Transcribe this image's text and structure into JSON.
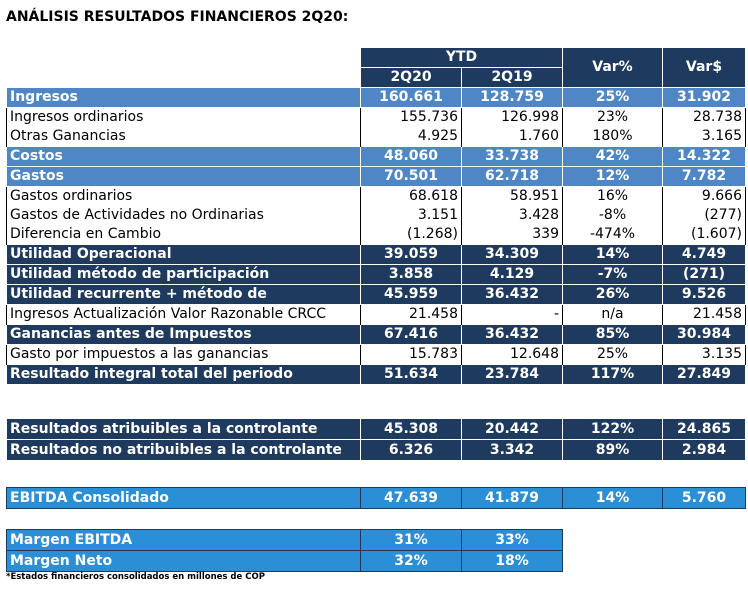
{
  "title": "ANÁLISIS RESULTADOS FINANCIEROS 2Q20:",
  "header": {
    "group": "YTD",
    "col_2q20": "2Q20",
    "col_2q19": "2Q19",
    "col_varpct": "Var%",
    "col_vardol": "Var$"
  },
  "rows": [
    {
      "label": "Ingresos",
      "a": "160.661",
      "b": "128.759",
      "c": "25%",
      "d": "31.902",
      "style": "blue"
    },
    {
      "label": "Ingresos ordinarios",
      "a": "155.736",
      "b": "126.998",
      "c": "23%",
      "d": "28.738",
      "style": "plain"
    },
    {
      "label": "Otras Ganancias",
      "a": "4.925",
      "b": "1.760",
      "c": "180%",
      "d": "3.165",
      "style": "plain"
    },
    {
      "label": "Costos",
      "a": "48.060",
      "b": "33.738",
      "c": "42%",
      "d": "14.322",
      "style": "blue"
    },
    {
      "label": "Gastos",
      "a": "70.501",
      "b": "62.718",
      "c": "12%",
      "d": "7.782",
      "style": "blue"
    },
    {
      "label": "Gastos ordinarios",
      "a": "68.618",
      "b": "58.951",
      "c": "16%",
      "d": "9.666",
      "style": "plain"
    },
    {
      "label": "Gastos de Actividades no Ordinarias",
      "a": "3.151",
      "b": "3.428",
      "c": "-8%",
      "d": "(277)",
      "style": "plain"
    },
    {
      "label": "Diferencia en Cambio",
      "a": "(1.268)",
      "b": "339",
      "c": "-474%",
      "d": "(1.607)",
      "style": "plain"
    },
    {
      "label": "Utilidad Operacional",
      "a": "39.059",
      "b": "34.309",
      "c": "14%",
      "d": "4.749",
      "style": "navy"
    },
    {
      "label": "Utilidad método de participación",
      "a": "3.858",
      "b": "4.129",
      "c": "-7%",
      "d": "(271)",
      "style": "navy"
    },
    {
      "label": "Utilidad recurrente + método de",
      "a": "45.959",
      "b": "36.432",
      "c": "26%",
      "d": "9.526",
      "style": "navy"
    },
    {
      "label": "Ingresos Actualización Valor Razonable CRCC",
      "a": "21.458",
      "b": "-",
      "c": "n/a",
      "d": "21.458",
      "style": "plain"
    },
    {
      "label": "Ganancias antes de Impuestos",
      "a": "67.416",
      "b": "36.432",
      "c": "85%",
      "d": "30.984",
      "style": "navy"
    },
    {
      "label": "Gasto por impuestos a las ganancias",
      "a": "15.783",
      "b": "12.648",
      "c": "25%",
      "d": "3.135",
      "style": "plain"
    },
    {
      "label": "Resultado integral total del periodo",
      "a": "51.634",
      "b": "23.784",
      "c": "117%",
      "d": "27.849",
      "style": "navy"
    }
  ],
  "attrib": [
    {
      "label": "Resultados atribuibles a la controlante",
      "a": "45.308",
      "b": "20.442",
      "c": "122%",
      "d": "24.865"
    },
    {
      "label": "Resultados no atribuibles a la controlante",
      "a": "6.326",
      "b": "3.342",
      "c": "89%",
      "d": "2.984"
    }
  ],
  "ebitda": {
    "label": "EBITDA Consolidado",
    "a": "47.639",
    "b": "41.879",
    "c": "14%",
    "d": "5.760"
  },
  "margins": [
    {
      "label": "Margen EBITDA",
      "a": "31%",
      "b": "33%"
    },
    {
      "label": "Margen Neto",
      "a": "32%",
      "b": "18%"
    }
  ],
  "footnote": "*Estados financieros consolidados en millones de COP",
  "colors": {
    "navy": "#1f3a5f",
    "blue": "#4f86c6",
    "sky": "#2a8fd6"
  }
}
